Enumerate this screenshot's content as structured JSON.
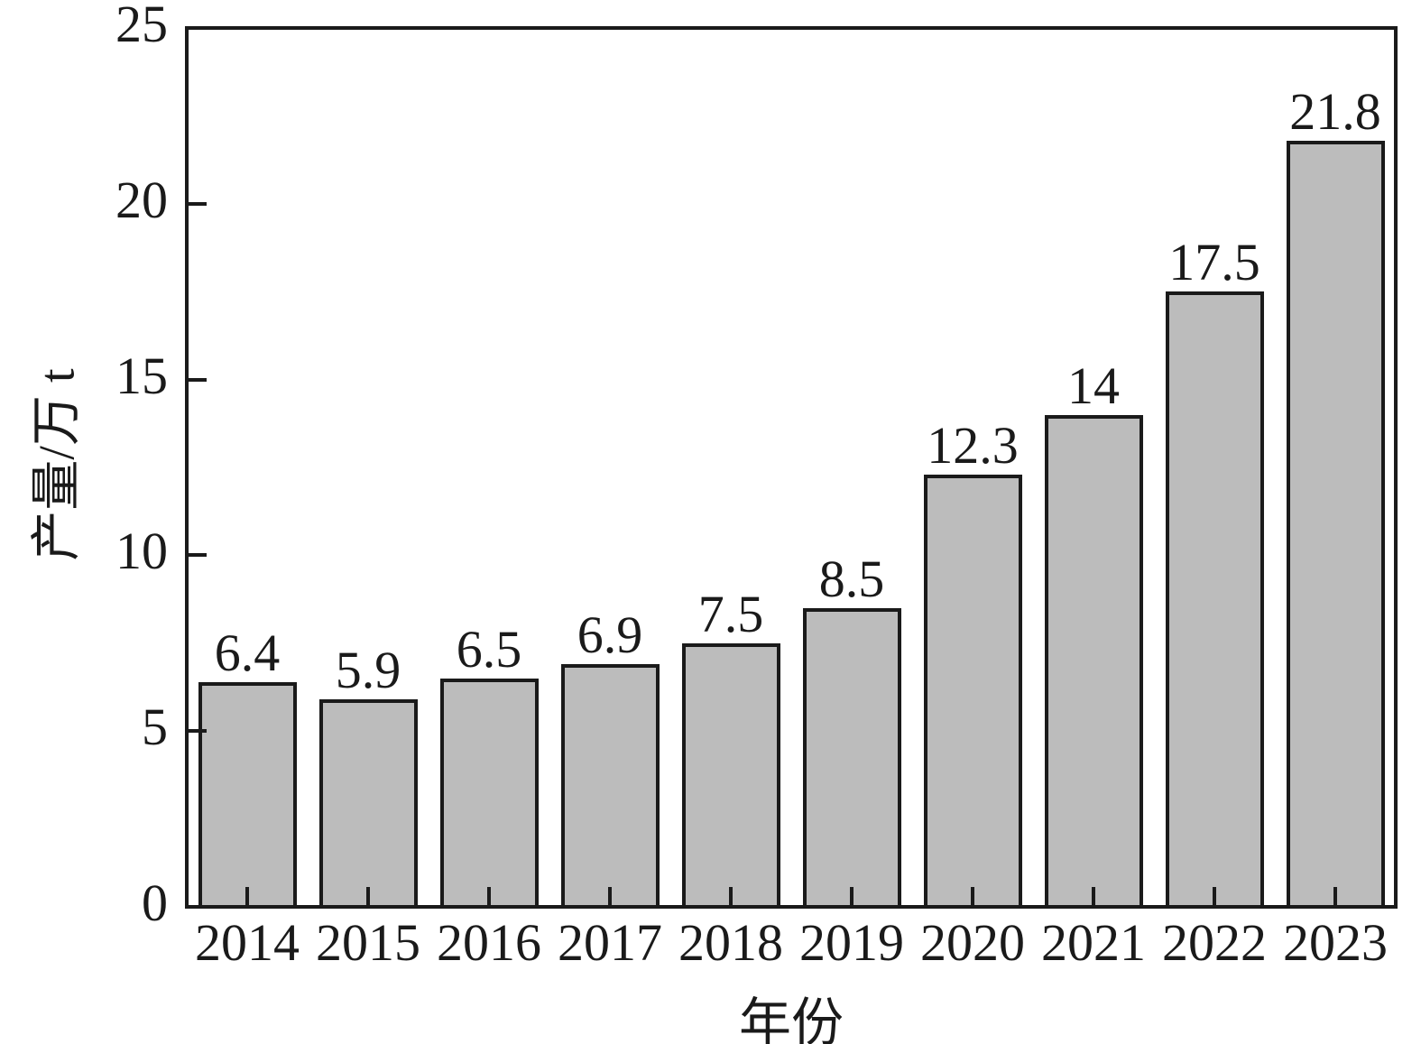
{
  "chart_data": {
    "type": "bar",
    "categories": [
      "2014",
      "2015",
      "2016",
      "2017",
      "2018",
      "2019",
      "2020",
      "2021",
      "2022",
      "2023"
    ],
    "values": [
      6.4,
      5.9,
      6.5,
      6.9,
      7.5,
      8.5,
      12.3,
      14,
      17.5,
      21.8
    ],
    "value_labels": [
      "6.4",
      "5.9",
      "6.5",
      "6.9",
      "7.5",
      "8.5",
      "12.3",
      "14",
      "17.5",
      "21.8"
    ],
    "title": "",
    "xlabel": "年份",
    "ylabel": "产量/万 t",
    "ylim": [
      0,
      25
    ],
    "yticks": [
      0,
      5,
      10,
      15,
      20,
      25
    ],
    "ytick_labels": [
      "0",
      "5",
      "10",
      "15",
      "20",
      "25"
    ],
    "grid": false,
    "legend": null,
    "layout_hints": {
      "bar_fill_color": "#bcbcbc",
      "bar_edge_color": "#1a1a1a",
      "axis_color": "#1a1a1a",
      "text_color": "#1a1a1a",
      "background_color": "#ffffff",
      "tick_direction": "in",
      "frame": "full-box"
    }
  }
}
